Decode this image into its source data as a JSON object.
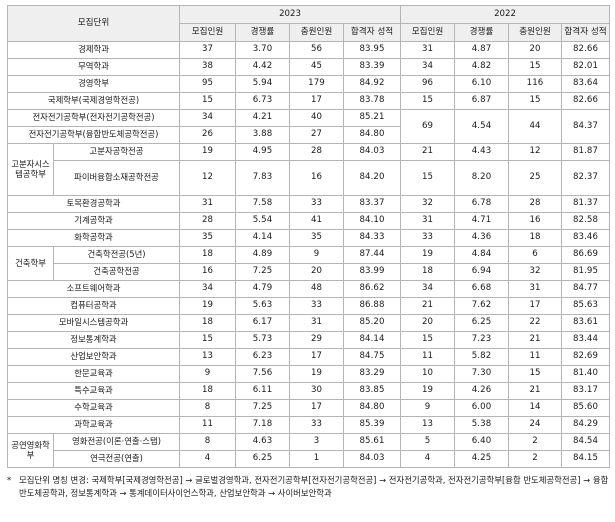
{
  "header": {
    "unit_label": "모집단위",
    "years": [
      "2023",
      "2022"
    ],
    "columns": [
      "모집인원",
      "경쟁률",
      "충원인원",
      "합격자 성적"
    ]
  },
  "rows": [
    {
      "name": "경제학과",
      "v2023": [
        "37",
        "3.70",
        "56",
        "83.95"
      ],
      "v2022": [
        "31",
        "4.87",
        "20",
        "82.66"
      ]
    },
    {
      "name": "무역학과",
      "v2023": [
        "38",
        "4.42",
        "45",
        "83.39"
      ],
      "v2022": [
        "34",
        "4.82",
        "15",
        "82.01"
      ]
    },
    {
      "name": "경영학부",
      "v2023": [
        "95",
        "5.94",
        "179",
        "84.92"
      ],
      "v2022": [
        "96",
        "6.10",
        "116",
        "83.64"
      ]
    },
    {
      "name": "국제학부(국제경영학전공)",
      "v2023": [
        "15",
        "6.73",
        "17",
        "83.78"
      ],
      "v2022": [
        "15",
        "6.87",
        "15",
        "82.66"
      ]
    },
    {
      "name": "전자전기공학부(전자전기공학전공)",
      "v2023": [
        "34",
        "4.21",
        "40",
        "85.21"
      ]
    },
    {
      "name": "전자전기공학부(융합반도체공학전공)",
      "v2023": [
        "26",
        "3.88",
        "27",
        "84.80"
      ]
    },
    {
      "merged2022": [
        "69",
        "4.54",
        "44",
        "84.37"
      ]
    },
    {
      "group": "고분자시스템공학부",
      "sub": "고분자공학전공",
      "v2023": [
        "19",
        "4.95",
        "28",
        "84.03"
      ],
      "v2022": [
        "21",
        "4.43",
        "12",
        "81.87"
      ]
    },
    {
      "sub": "파이버융합소재공학전공",
      "v2023": [
        "12",
        "7.83",
        "16",
        "84.20"
      ],
      "v2022": [
        "15",
        "8.20",
        "25",
        "82.37"
      ]
    },
    {
      "name": "토목환경공학과",
      "v2023": [
        "31",
        "7.58",
        "33",
        "83.37"
      ],
      "v2022": [
        "32",
        "6.78",
        "28",
        "81.37"
      ]
    },
    {
      "name": "기계공학과",
      "v2023": [
        "28",
        "5.54",
        "41",
        "84.10"
      ],
      "v2022": [
        "31",
        "4.71",
        "16",
        "82.58"
      ]
    },
    {
      "name": "화학공학과",
      "v2023": [
        "35",
        "4.14",
        "35",
        "84.33"
      ],
      "v2022": [
        "33",
        "4.36",
        "18",
        "83.46"
      ]
    },
    {
      "group": "건축학부",
      "sub": "건축학전공(5년)",
      "v2023": [
        "18",
        "4.89",
        "9",
        "87.44"
      ],
      "v2022": [
        "19",
        "4.84",
        "6",
        "86.69"
      ]
    },
    {
      "sub": "건축공학전공",
      "v2023": [
        "16",
        "7.25",
        "20",
        "83.99"
      ],
      "v2022": [
        "18",
        "6.94",
        "32",
        "81.95"
      ]
    },
    {
      "name": "소프트웨어학과",
      "v2023": [
        "34",
        "4.79",
        "48",
        "86.62"
      ],
      "v2022": [
        "34",
        "6.68",
        "31",
        "84.77"
      ]
    },
    {
      "name": "컴퓨터공학과",
      "v2023": [
        "19",
        "5.63",
        "33",
        "86.88"
      ],
      "v2022": [
        "21",
        "7.62",
        "17",
        "85.63"
      ]
    },
    {
      "name": "모바일시스템공학과",
      "v2023": [
        "18",
        "6.17",
        "31",
        "85.20"
      ],
      "v2022": [
        "20",
        "6.25",
        "22",
        "83.61"
      ]
    },
    {
      "name": "정보통계학과",
      "v2023": [
        "15",
        "5.73",
        "29",
        "84.14"
      ],
      "v2022": [
        "15",
        "7.23",
        "21",
        "83.44"
      ]
    },
    {
      "name": "산업보안학과",
      "v2023": [
        "13",
        "6.23",
        "17",
        "84.75"
      ],
      "v2022": [
        "11",
        "5.82",
        "11",
        "82.69"
      ]
    },
    {
      "name": "한문교육과",
      "v2023": [
        "9",
        "7.56",
        "19",
        "83.29"
      ],
      "v2022": [
        "10",
        "7.30",
        "15",
        "81.40"
      ]
    },
    {
      "name": "특수교육과",
      "v2023": [
        "18",
        "6.11",
        "30",
        "83.85"
      ],
      "v2022": [
        "19",
        "4.26",
        "21",
        "83.17"
      ]
    },
    {
      "name": "수학교육과",
      "v2023": [
        "8",
        "7.25",
        "17",
        "84.80"
      ],
      "v2022": [
        "9",
        "6.00",
        "14",
        "85.60"
      ]
    },
    {
      "name": "과학교육과",
      "v2023": [
        "11",
        "7.18",
        "33",
        "85.39"
      ],
      "v2022": [
        "13",
        "5.38",
        "24",
        "84.29"
      ]
    },
    {
      "group": "공연영화학부",
      "sub": "영화전공(이론·연출·스탭)",
      "v2023": [
        "8",
        "4.63",
        "3",
        "85.61"
      ],
      "v2022": [
        "5",
        "6.40",
        "2",
        "84.54"
      ]
    },
    {
      "sub": "연극전공(연출)",
      "v2023": [
        "4",
        "6.25",
        "1",
        "84.03"
      ],
      "v2022": [
        "4",
        "4.25",
        "2",
        "84.15"
      ]
    }
  ],
  "note": {
    "bullet": "*",
    "text": "모집단위 명칭 변경: 국제학부[국제경영학전공] → 글로벌경영학과, 전자전기공학부[전자전기공학전공] → 전자전기공학과, 전자전기공학부[융합 반도체공학전공] → 융합반도체공학과, 정보통계학과 → 통계데이터사이언스학과, 산업보안학과 → 사이버보안학과"
  }
}
